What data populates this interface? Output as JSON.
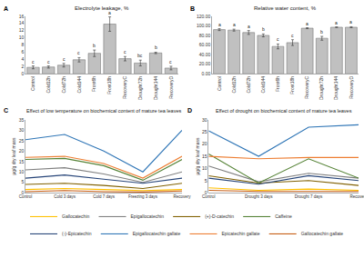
{
  "chart_data": [
    {
      "type": "bar",
      "panel": "A",
      "title": "Electrolyte leakage, %",
      "categories": [
        "Control",
        "Cold12h",
        "Cold72h",
        "Cold144",
        "Frost6h",
        "Frost18h",
        "RecoveryC",
        "Drought72h",
        "Drought144",
        "RecoveryD"
      ],
      "values": [
        1.8,
        1.9,
        2.4,
        3.9,
        5.7,
        13.8,
        4.2,
        3.0,
        5.8,
        1.6
      ],
      "errors": [
        0.4,
        0.3,
        0.5,
        0.6,
        0.9,
        2.0,
        0.6,
        0.8,
        0.2,
        0.5
      ],
      "letters": [
        "c",
        "c",
        "c",
        "c",
        "b",
        "a",
        "c",
        "bc",
        "b",
        "c"
      ],
      "color": "#c0c0c0",
      "ylim": [
        0,
        16
      ],
      "yticks": [
        0,
        2,
        4,
        6,
        8,
        10,
        12,
        14,
        16
      ],
      "grid": false
    },
    {
      "type": "bar",
      "panel": "B",
      "title": "Relative water content, %",
      "categories": [
        "Control",
        "Cold12h",
        "Cold72h",
        "Cold144",
        "Frost6h",
        "Frost18h",
        "RecoveryC",
        "Drought72h",
        "Drought144",
        "RecoveryD"
      ],
      "values": [
        92,
        91,
        86,
        80,
        57,
        65,
        95,
        74,
        97,
        97
      ],
      "errors": [
        2,
        2,
        4,
        3,
        5,
        6,
        1,
        4,
        0.5,
        1
      ],
      "letters": [
        "a",
        "a",
        "a",
        "b",
        "c",
        "c",
        "a",
        "b",
        "a",
        "a"
      ],
      "color": "#c0c0c0",
      "ylim": [
        0,
        120
      ],
      "yticks": [
        {
          "value": 0,
          "label": "0.00"
        },
        {
          "value": 20,
          "label": "20.00"
        },
        {
          "value": 40,
          "label": "40.00"
        },
        {
          "value": 60,
          "label": "60.00"
        },
        {
          "value": 80,
          "label": "80.00"
        },
        {
          "value": 100,
          "label": "100.00"
        },
        {
          "value": 120,
          "label": "120.00"
        }
      ],
      "grid": false
    },
    {
      "type": "line",
      "panel": "C",
      "title": "Effect of low temperature on biochemical content of mature tea leaves",
      "ylabel": "μg/g dry leaf mass",
      "categories": [
        "Control",
        "Cold 3 days",
        "Cold 7 days",
        "Freezing 3 days",
        "Recovery"
      ],
      "series": [
        {
          "name": "Gallocatechin",
          "color": "#ffc000",
          "values": [
            1.5,
            2,
            1.5,
            1,
            1.5
          ]
        },
        {
          "name": "Epigallocatechin",
          "color": "#7f7f7f",
          "values": [
            11,
            12,
            9,
            5,
            10
          ]
        },
        {
          "name": "(+)-D-catechin",
          "color": "#806000",
          "values": [
            4,
            4.5,
            3.5,
            2,
            4.5
          ]
        },
        {
          "name": "Caffeine",
          "color": "#548235",
          "values": [
            16,
            16.5,
            13,
            6,
            16
          ]
        },
        {
          "name": "(-)-Epicatechin",
          "color": "#264478",
          "values": [
            7,
            8.5,
            6.5,
            4.5,
            7
          ]
        },
        {
          "name": "Epigallocatechin gallate",
          "color": "#2e75b6",
          "values": [
            25.5,
            28,
            20,
            10,
            30
          ]
        },
        {
          "name": "Epicatechin gallate",
          "color": "#ed7d31",
          "values": [
            17,
            17.5,
            14,
            7,
            17.5
          ]
        },
        {
          "name": "Gallocatechin gallate",
          "color": "#c55a11",
          "values": [
            0.5,
            1,
            0.5,
            0.3,
            0.8
          ]
        }
      ],
      "ylim": [
        0,
        35
      ],
      "yticks": [
        0,
        5,
        10,
        15,
        20,
        25,
        30,
        35
      ],
      "grid": false,
      "legend": "bottom"
    },
    {
      "type": "line",
      "panel": "D",
      "title": "Effect of drought on biochemical content of mature tea leaves",
      "ylabel": "μg/g dry leaf mass",
      "categories": [
        "Control",
        "Drought 3 days",
        "Drought 7 days",
        "Recovery"
      ],
      "series": [
        {
          "name": "Gallocatechin",
          "color": "#ffc000",
          "values": [
            2,
            1,
            1.5,
            1
          ]
        },
        {
          "name": "Epigallocatechin",
          "color": "#7f7f7f",
          "values": [
            11,
            4.5,
            8,
            6
          ]
        },
        {
          "name": "(+)-D-catechin",
          "color": "#806000",
          "values": [
            7,
            4,
            5,
            3
          ]
        },
        {
          "name": "Caffeine",
          "color": "#548235",
          "values": [
            16,
            4,
            14,
            6
          ]
        },
        {
          "name": "(-)-Epicatechin",
          "color": "#264478",
          "values": [
            6,
            3.5,
            7,
            5
          ]
        },
        {
          "name": "Epigallocatechin gallate",
          "color": "#2e75b6",
          "values": [
            25.5,
            15,
            27,
            28
          ]
        },
        {
          "name": "Epicatechin gallate",
          "color": "#ed7d31",
          "values": [
            15,
            14,
            14.5,
            14.5
          ]
        },
        {
          "name": "Gallocatechin gallate",
          "color": "#c55a11",
          "values": [
            1,
            0.5,
            0.5,
            0.5
          ]
        }
      ],
      "ylim": [
        0,
        30
      ],
      "yticks": [
        0,
        5,
        10,
        15,
        20,
        25,
        30
      ],
      "grid": false,
      "legend": "bottom"
    }
  ]
}
